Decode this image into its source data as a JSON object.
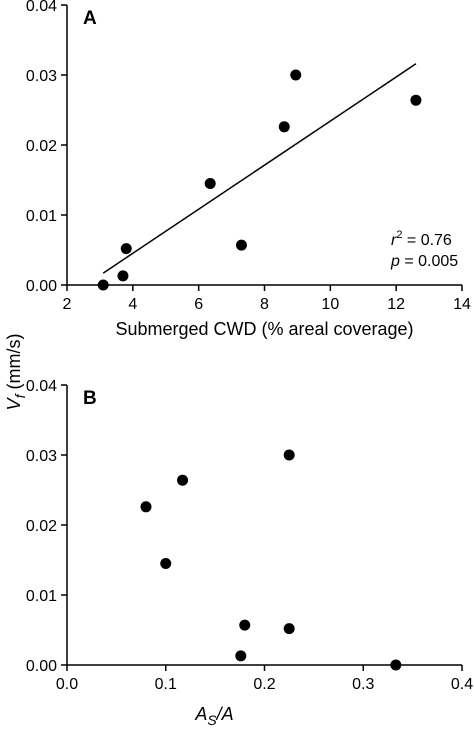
{
  "chart_data": [
    {
      "type": "scatter",
      "panel_label": "A",
      "xlabel": "Submerged CWD (% areal coverage)",
      "xlim": [
        2,
        14
      ],
      "ylim": [
        0,
        0.04
      ],
      "xticks": [
        "2",
        "4",
        "6",
        "8",
        "10",
        "12",
        "14"
      ],
      "yticks": [
        "0.00",
        "0.01",
        "0.02",
        "0.03",
        "0.04"
      ],
      "points": [
        {
          "x": 3.1,
          "y": 0.0
        },
        {
          "x": 3.7,
          "y": 0.0013
        },
        {
          "x": 3.8,
          "y": 0.0052
        },
        {
          "x": 6.35,
          "y": 0.0145
        },
        {
          "x": 7.3,
          "y": 0.0057
        },
        {
          "x": 8.6,
          "y": 0.0226
        },
        {
          "x": 8.95,
          "y": 0.03
        },
        {
          "x": 12.6,
          "y": 0.0264
        }
      ],
      "fit_line": {
        "x": [
          3.1,
          12.6
        ],
        "y": [
          0.0017,
          0.0316
        ]
      },
      "annotation": {
        "r2_label": "r",
        "r2_sup": "2",
        "r2_value": " = 0.76",
        "p_label": "p",
        "p_value": " = 0.005"
      }
    },
    {
      "type": "scatter",
      "panel_label": "B",
      "xlabel_main": "A",
      "xlabel_sub": "S",
      "xlabel_rest": "/A",
      "xlim": [
        0,
        0.4
      ],
      "ylim": [
        0,
        0.04
      ],
      "xticks": [
        "0.0",
        "0.1",
        "0.2",
        "0.3",
        "0.4"
      ],
      "yticks": [
        "0.00",
        "0.01",
        "0.02",
        "0.03",
        "0.04"
      ],
      "points": [
        {
          "x": 0.08,
          "y": 0.0226
        },
        {
          "x": 0.1,
          "y": 0.0145
        },
        {
          "x": 0.117,
          "y": 0.0264
        },
        {
          "x": 0.176,
          "y": 0.0013
        },
        {
          "x": 0.18,
          "y": 0.0057
        },
        {
          "x": 0.225,
          "y": 0.03
        },
        {
          "x": 0.225,
          "y": 0.0052
        },
        {
          "x": 0.333,
          "y": 0.0
        }
      ]
    }
  ],
  "shared_ylabel": {
    "main": "V",
    "sub": "f",
    "rest": " (mm/s)"
  }
}
